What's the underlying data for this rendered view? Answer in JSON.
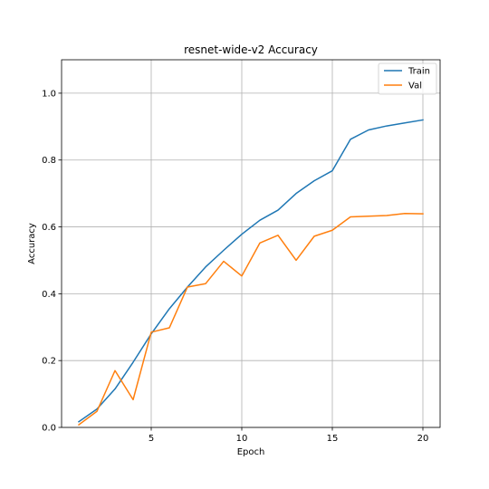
{
  "chart_data": {
    "type": "line",
    "title": "resnet-wide-v2 Accuracy",
    "xlabel": "Epoch",
    "ylabel": "Accuracy",
    "xlim": [
      0.05,
      20.95
    ],
    "ylim": [
      0.0,
      1.1
    ],
    "xticks": [
      5,
      10,
      15,
      20
    ],
    "yticks": [
      0.0,
      0.2,
      0.4,
      0.6,
      0.8,
      1.0
    ],
    "xtick_labels": [
      "5",
      "10",
      "15",
      "20"
    ],
    "ytick_labels": [
      "0.0",
      "0.2",
      "0.4",
      "0.6",
      "0.8",
      "1.0"
    ],
    "grid": true,
    "legend": "top-right",
    "x": [
      1,
      2,
      3,
      4,
      5,
      6,
      7,
      8,
      9,
      10,
      11,
      12,
      13,
      14,
      15,
      16,
      17,
      18,
      19,
      20
    ],
    "series": [
      {
        "name": "Train",
        "color": "#1f77b4",
        "values": [
          0.017,
          0.055,
          0.115,
          0.195,
          0.28,
          0.355,
          0.42,
          0.48,
          0.53,
          0.578,
          0.62,
          0.65,
          0.7,
          0.738,
          0.768,
          0.862,
          0.89,
          0.902,
          0.911,
          0.92
        ]
      },
      {
        "name": "Val",
        "color": "#ff7f0e",
        "values": [
          0.008,
          0.048,
          0.17,
          0.083,
          0.285,
          0.298,
          0.42,
          0.43,
          0.497,
          0.453,
          0.552,
          0.575,
          0.5,
          0.572,
          0.59,
          0.63,
          0.632,
          0.634,
          0.64,
          0.639
        ]
      }
    ]
  }
}
